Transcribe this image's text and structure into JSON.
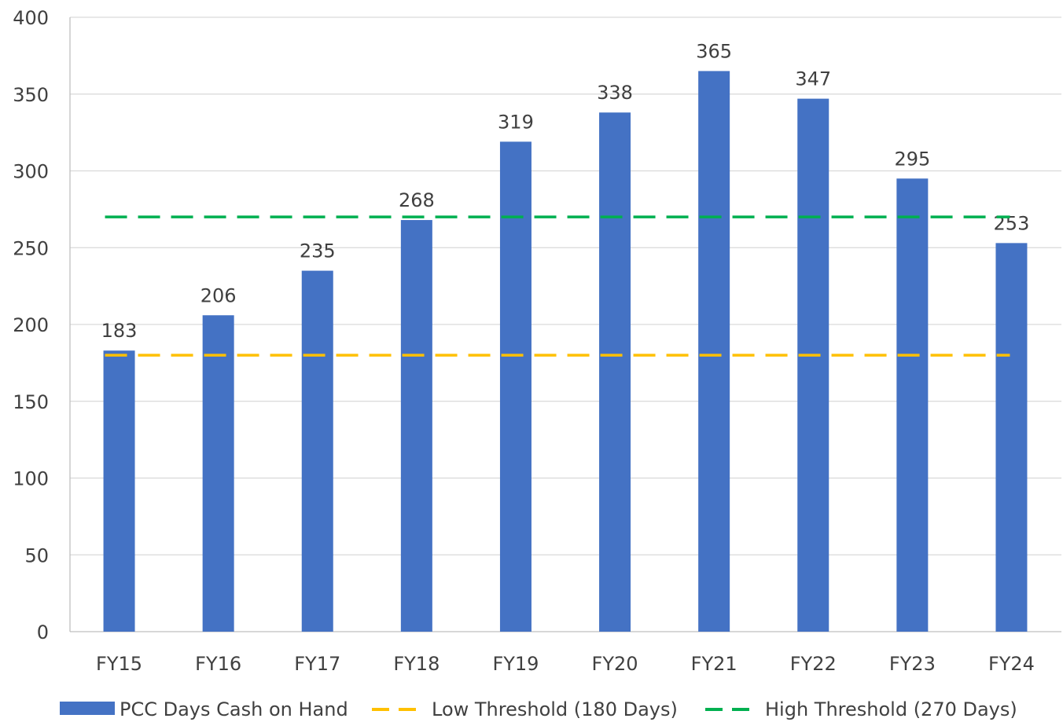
{
  "chart_data": {
    "type": "bar",
    "categories": [
      "FY15",
      "FY16",
      "FY17",
      "FY18",
      "FY19",
      "FY20",
      "FY21",
      "FY22",
      "FY23",
      "FY24"
    ],
    "series": [
      {
        "name": "PCC Days Cash on Hand",
        "values": [
          183,
          206,
          235,
          268,
          319,
          338,
          365,
          347,
          295,
          253
        ],
        "color": "#4472C4"
      }
    ],
    "reference_lines": [
      {
        "name": "Low Threshold (180 Days)",
        "value": 180,
        "color": "#FFC000",
        "style": "dashed"
      },
      {
        "name": "High Threshold (270 Days)",
        "value": 270,
        "color": "#00B050",
        "style": "dashed"
      }
    ],
    "ylim": [
      0,
      400
    ],
    "yticks": [
      0,
      50,
      100,
      150,
      200,
      250,
      300,
      350,
      400
    ],
    "title": "",
    "xlabel": "",
    "ylabel": "",
    "grid": true,
    "legend_position": "bottom",
    "data_labels": true
  }
}
